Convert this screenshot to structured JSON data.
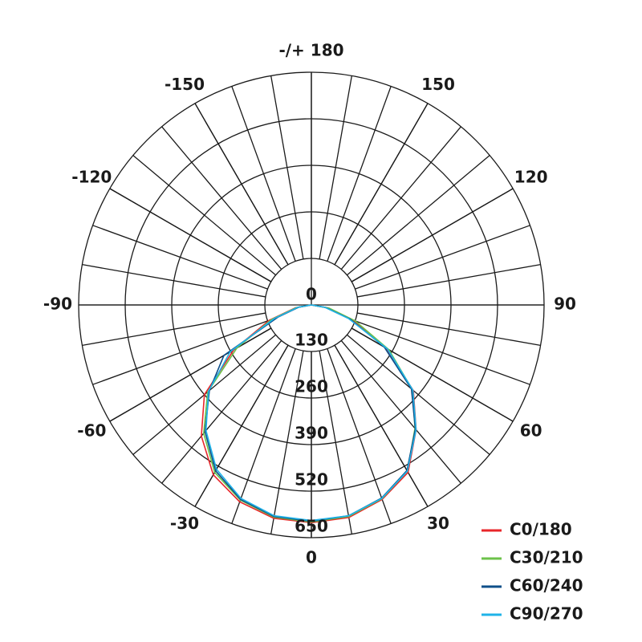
{
  "chart_data": {
    "type": "polar",
    "rlim": [
      0,
      650
    ],
    "rticks": [
      0,
      130,
      260,
      390,
      520,
      650
    ],
    "thetaticks": [
      {
        "value": 180,
        "label": "-/+ 180"
      },
      150,
      120,
      90,
      60,
      30,
      0,
      -30,
      -60,
      -90,
      -120,
      -150
    ],
    "x": [
      -90,
      -80,
      -70,
      -60,
      -50,
      -40,
      -30,
      -20,
      -10,
      0,
      10,
      20,
      30,
      40,
      50,
      60,
      70,
      80,
      90
    ],
    "series": [
      {
        "name": "C0/180",
        "color": "#e8262a",
        "values": [
          0,
          45,
          125,
          250,
          390,
          478,
          548,
          585,
          605,
          608,
          603,
          578,
          540,
          455,
          372,
          240,
          120,
          45,
          0
        ]
      },
      {
        "name": "C30/210",
        "color": "#6cc24a",
        "values": [
          0,
          42,
          118,
          240,
          378,
          468,
          540,
          580,
          602,
          606,
          600,
          576,
          536,
          450,
          368,
          250,
          130,
          50,
          0
        ]
      },
      {
        "name": "C60/240",
        "color": "#0e4f8a",
        "values": [
          0,
          35,
          100,
          282,
          372,
          462,
          535,
          578,
          600,
          604,
          598,
          574,
          534,
          452,
          365,
          235,
          115,
          40,
          0
        ]
      },
      {
        "name": "C90/270",
        "color": "#1fb3e8",
        "values": [
          0,
          38,
          110,
          262,
          375,
          458,
          530,
          575,
          598,
          602,
          598,
          575,
          536,
          455,
          370,
          245,
          110,
          38,
          0
        ]
      }
    ]
  }
}
